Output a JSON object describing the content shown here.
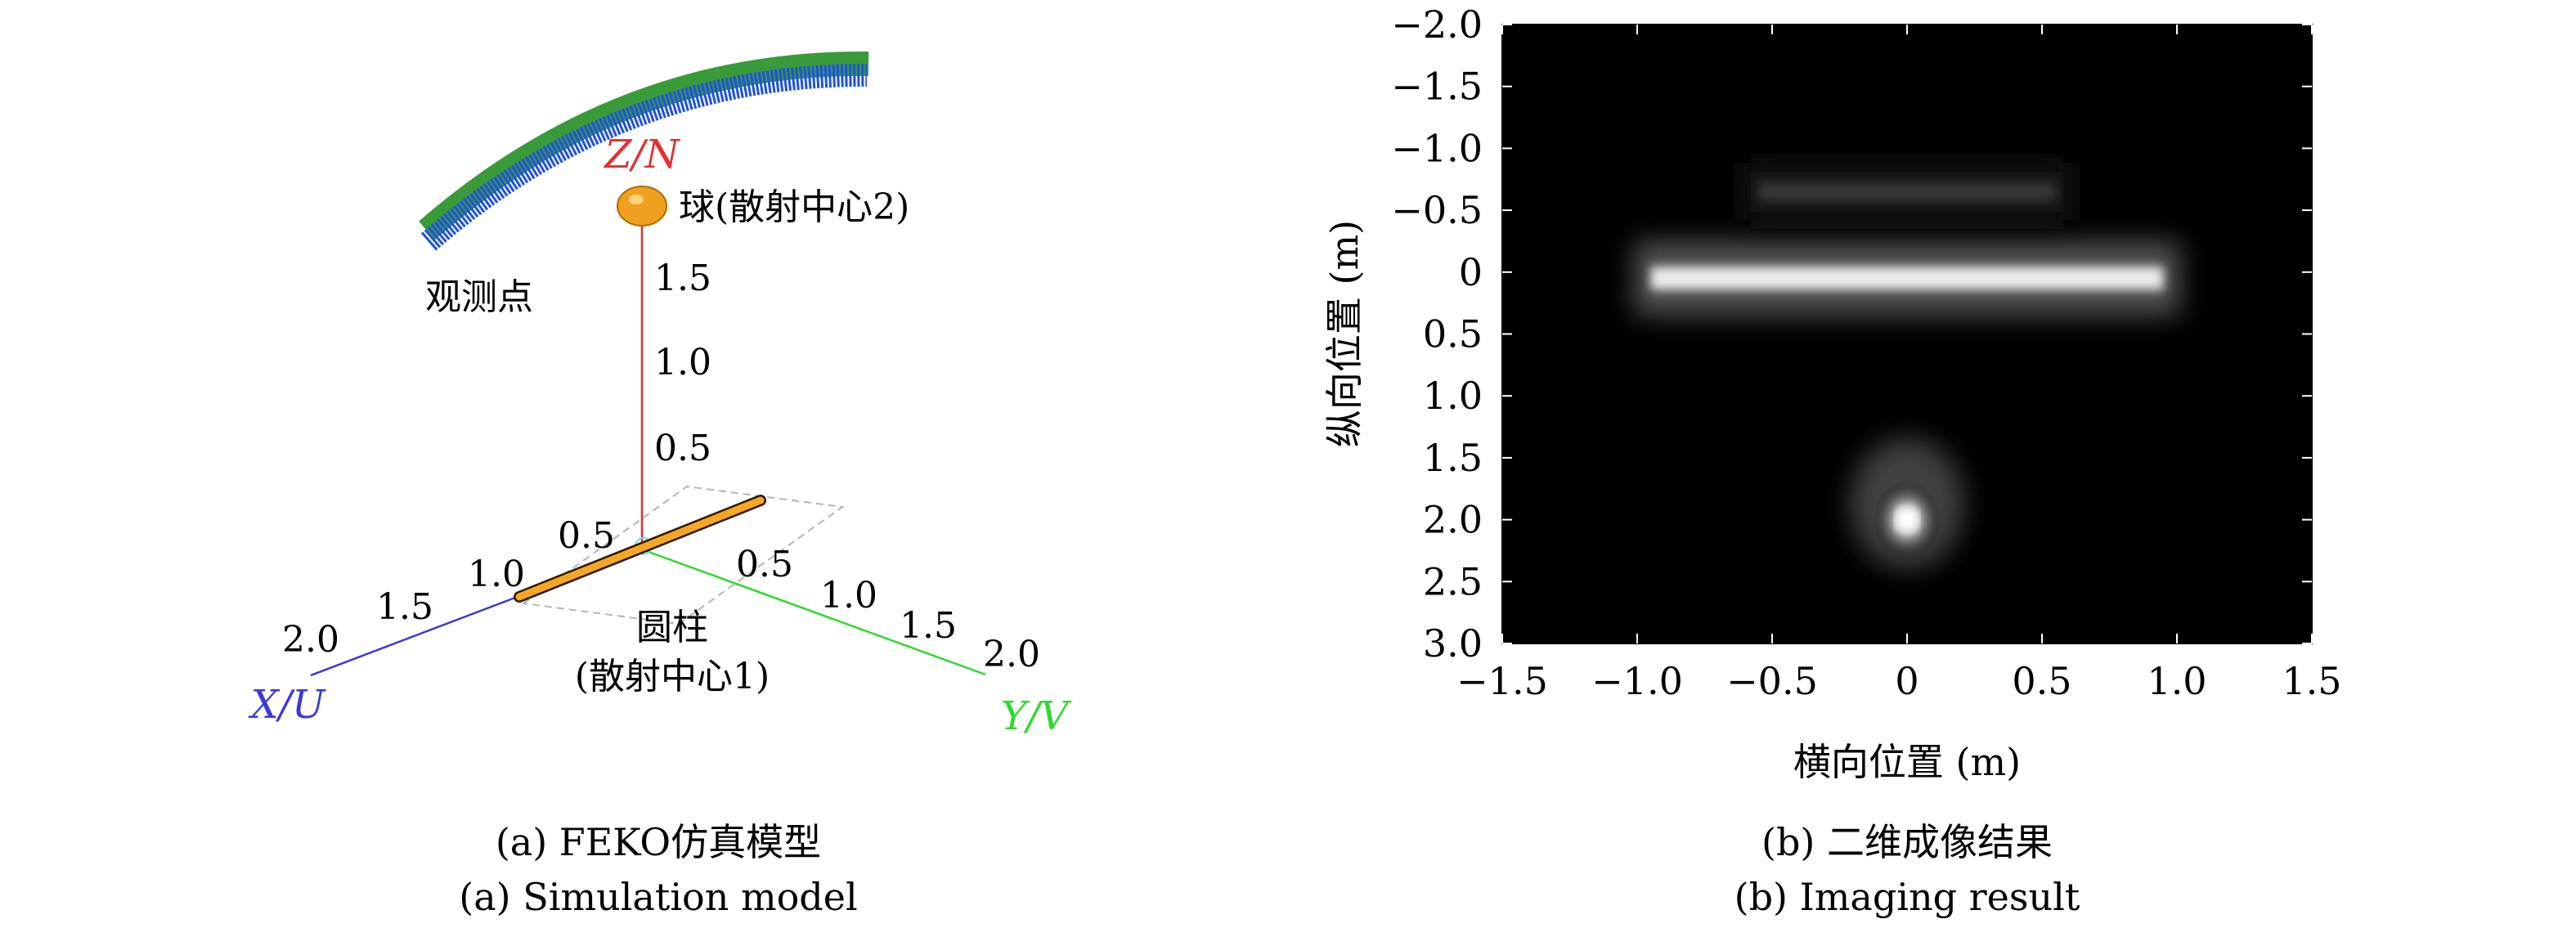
{
  "panel_a": {
    "axis_z_label": "Z/N",
    "axis_x_label": "X/U",
    "axis_y_label": "Y/V",
    "z_ticks": [
      "1.5",
      "1.0",
      "0.5"
    ],
    "x_ticks": [
      "0.5",
      "1.0",
      "1.5",
      "2.0"
    ],
    "y_ticks": [
      "0.5",
      "1.0",
      "1.5",
      "2.0"
    ],
    "sphere_label": "球(散射中心2)",
    "observation_label": "观测点",
    "cylinder_label_line1": "圆柱",
    "cylinder_label_line2": "(散射中心1)",
    "caption_cn": "(a) FEKO仿真模型",
    "caption_en": "(a) Simulation model",
    "colors": {
      "z_axis": "#e03030",
      "x_axis": "#3a3ad8",
      "y_axis": "#30d830",
      "cylinder": "#f5a623",
      "sphere": "#f0a020",
      "arc": "#2050e8",
      "arc_edge": "#3a9a3a"
    }
  },
  "panel_b": {
    "caption_cn": "(b) 二维成像结果",
    "caption_en": "(b) Imaging result"
  },
  "chart_data": {
    "type": "heatmap",
    "xlabel": "横向位置 (m)",
    "ylabel": "纵向位置 (m)",
    "xlim": [
      -1.5,
      1.5
    ],
    "ylim": [
      -2.0,
      3.0
    ],
    "y_axis_inverted": true,
    "x_ticks": [
      {
        "value": -1.5,
        "label": "−1.5"
      },
      {
        "value": -1.0,
        "label": "−1.0"
      },
      {
        "value": -0.5,
        "label": "−0.5"
      },
      {
        "value": 0,
        "label": "0"
      },
      {
        "value": 0.5,
        "label": "0.5"
      },
      {
        "value": 1.0,
        "label": "1.0"
      },
      {
        "value": 1.5,
        "label": "1.5"
      }
    ],
    "y_ticks": [
      {
        "value": -2.0,
        "label": "−2.0"
      },
      {
        "value": -1.5,
        "label": "−1.5"
      },
      {
        "value": -1.0,
        "label": "−1.0"
      },
      {
        "value": -0.5,
        "label": "−0.5"
      },
      {
        "value": 0,
        "label": "0"
      },
      {
        "value": 0.5,
        "label": "0.5"
      },
      {
        "value": 1.0,
        "label": "1.0"
      },
      {
        "value": 1.5,
        "label": "1.5"
      },
      {
        "value": 2.0,
        "label": "2.0"
      },
      {
        "value": 2.5,
        "label": "2.5"
      },
      {
        "value": 3.0,
        "label": "3.0"
      }
    ],
    "colormap": "gray",
    "background_intensity": 0.0,
    "features": [
      {
        "name": "cylinder",
        "x_range": [
          -0.95,
          0.95
        ],
        "y": 0.05,
        "peak_intensity": 0.92
      },
      {
        "name": "cylinder-ghost",
        "x_range": [
          -0.55,
          0.55
        ],
        "y": -0.65,
        "peak_intensity": 0.22
      },
      {
        "name": "sphere",
        "x": 0.0,
        "y": 2.0,
        "peak_intensity": 1.0
      }
    ]
  }
}
